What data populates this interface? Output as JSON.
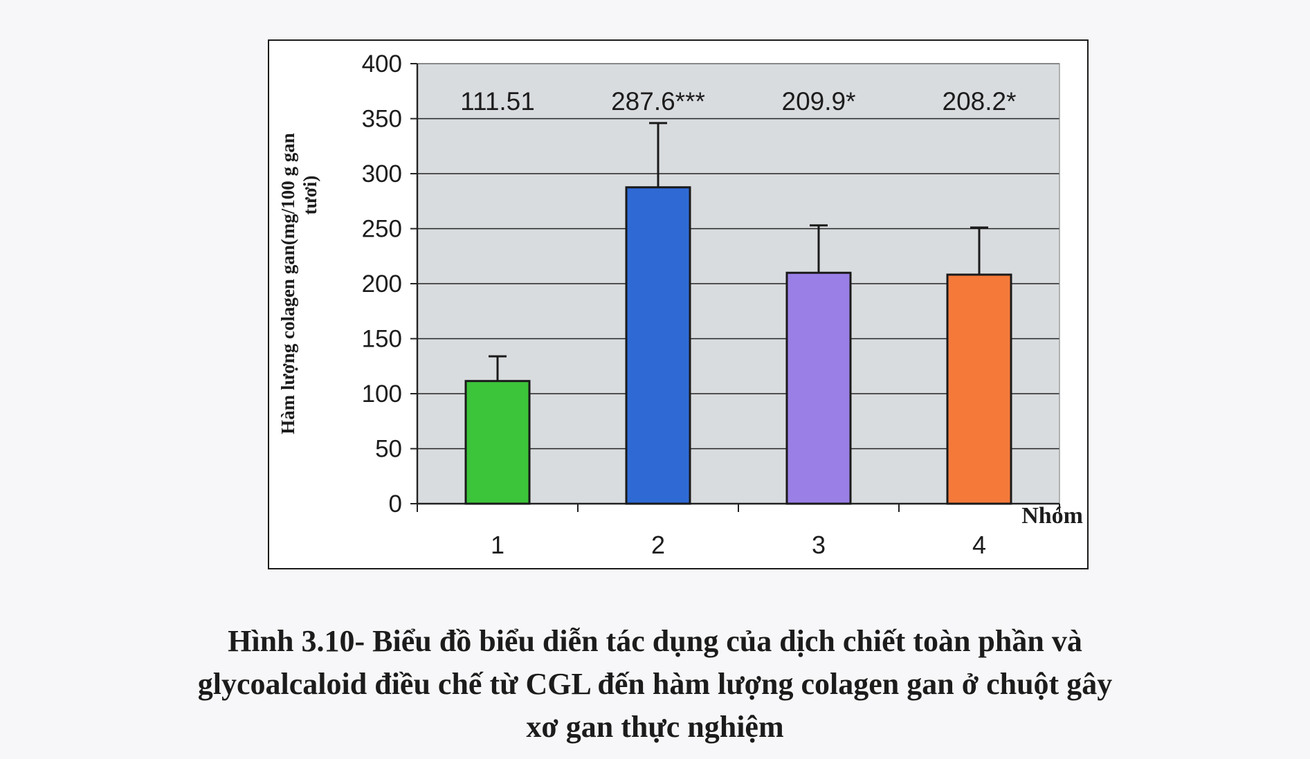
{
  "chart_data": {
    "type": "bar",
    "categories": [
      "1",
      "2",
      "3",
      "4"
    ],
    "values": [
      111.51,
      287.6,
      209.9,
      208.2
    ],
    "error_upper": [
      134,
      346,
      253,
      251
    ],
    "data_labels": [
      "111.51",
      "287.6***",
      "209.9*",
      "208.2*"
    ],
    "bar_colors": [
      "#3cc43a",
      "#2f6ad4",
      "#9a80e6",
      "#f57a3a"
    ],
    "xlabel": "Nhóm",
    "ylabel_line1": "Hàm lượng colagen gan(mg/100 g gan",
    "ylabel_line2": "tươi)",
    "ylim": [
      0,
      400
    ],
    "yticks": [
      0,
      50,
      100,
      150,
      200,
      250,
      300,
      350,
      400
    ],
    "grid": true,
    "plot_background": "#d9dcdf"
  },
  "caption": {
    "line1": "Hình 3.10- Biểu đồ biểu diễn tác dụng của dịch chiết toàn phần và",
    "line2": "glycoalcaloid điều chế từ CGL đến hàm lượng colagen gan ở chuột gây",
    "line3": "xơ gan thực nghiệm"
  }
}
